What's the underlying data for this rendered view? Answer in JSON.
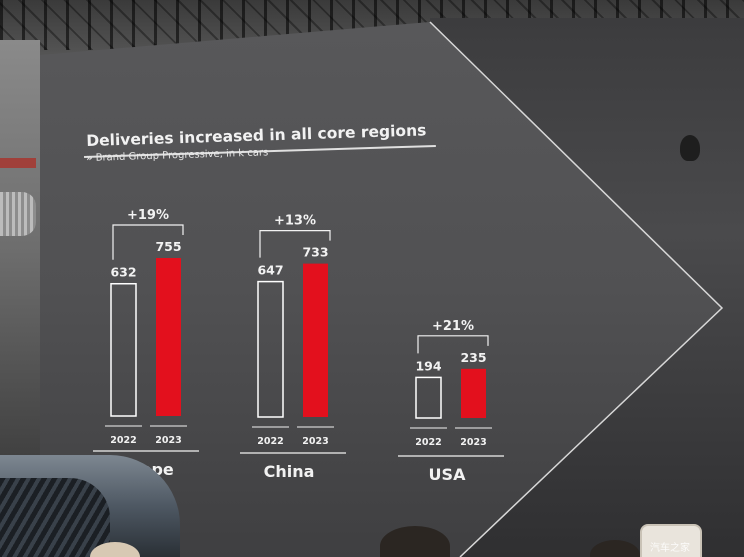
{
  "chart_data": {
    "type": "bar",
    "title": "Deliveries increased in all core regions",
    "subtitle": "Brand Group Progressive, in k cars",
    "subtitle_marker": "»",
    "years": [
      "2022",
      "2023"
    ],
    "groups": [
      {
        "category": "Europe",
        "values": [
          632,
          755
        ],
        "change": "+19%"
      },
      {
        "category": "China",
        "values": [
          647,
          733
        ],
        "change": "+13%"
      },
      {
        "category": "USA",
        "values": [
          194,
          235
        ],
        "change": "+21%"
      }
    ],
    "colors": {
      "2022": "#ffffff",
      "2023": "#e3101d",
      "text": "#f2f2f2"
    },
    "grid": false,
    "legend": "none"
  },
  "watermark": "汽车之家"
}
